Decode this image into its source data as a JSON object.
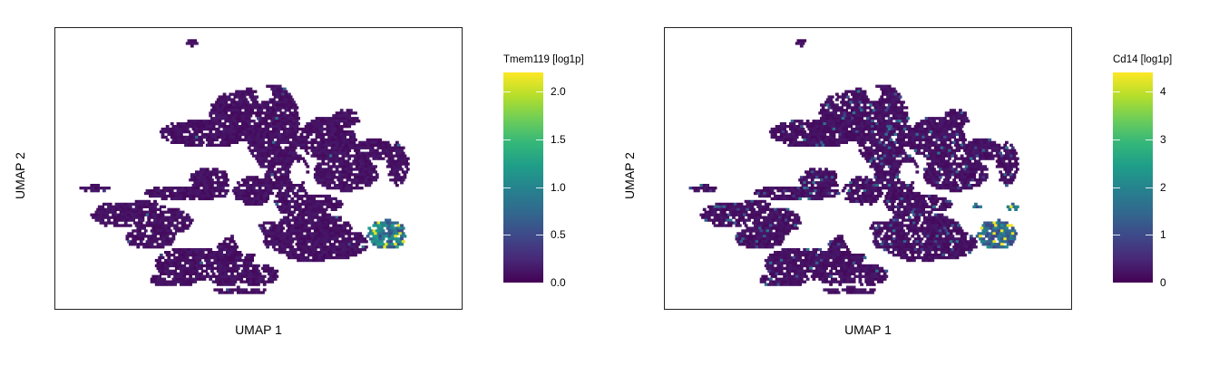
{
  "panels": [
    {
      "legend_title": "Tmem119 [log1p]",
      "xlabel": "UMAP 1",
      "ylabel": "UMAP 2",
      "legend_ticks": [
        "2.0",
        "1.5",
        "1.0",
        "0.5",
        "0.0"
      ]
    },
    {
      "legend_title": "Cd14 [log1p]",
      "xlabel": "UMAP 1",
      "ylabel": "UMAP 2",
      "legend_ticks": [
        "4",
        "3",
        "2",
        "1",
        "0"
      ]
    }
  ],
  "chart_data": [
    {
      "type": "scatter",
      "title": "",
      "xlabel": "UMAP 1",
      "ylabel": "UMAP 2",
      "color_variable": "Tmem119 [log1p]",
      "colormap": "viridis",
      "color_range": [
        0.0,
        2.2
      ],
      "colorbar_ticks": [
        0.0,
        0.5,
        1.0,
        1.5,
        2.0
      ],
      "axis_ticks_shown": false,
      "grid": false,
      "legend_position": "right",
      "background_value": 0.0,
      "hotspot": {
        "region": "right-cluster",
        "max_value": 2.1,
        "typical_value": 1.0
      }
    },
    {
      "type": "scatter",
      "title": "",
      "xlabel": "UMAP 1",
      "ylabel": "UMAP 2",
      "color_variable": "Cd14 [log1p]",
      "colormap": "viridis",
      "color_range": [
        0,
        4.4
      ],
      "colorbar_ticks": [
        0,
        1,
        2,
        3,
        4
      ],
      "axis_ticks_shown": false,
      "grid": false,
      "legend_position": "right",
      "background_value": 0.0,
      "hotspot": {
        "region": "right-cluster",
        "max_value": 4.3,
        "typical_value": 1.5
      }
    }
  ],
  "colors": {
    "viridis": [
      "#440154",
      "#482878",
      "#3e4989",
      "#31688e",
      "#26828e",
      "#1f9e89",
      "#35b779",
      "#6ece58",
      "#b5de2b",
      "#fde725"
    ],
    "frame": "#222222"
  }
}
